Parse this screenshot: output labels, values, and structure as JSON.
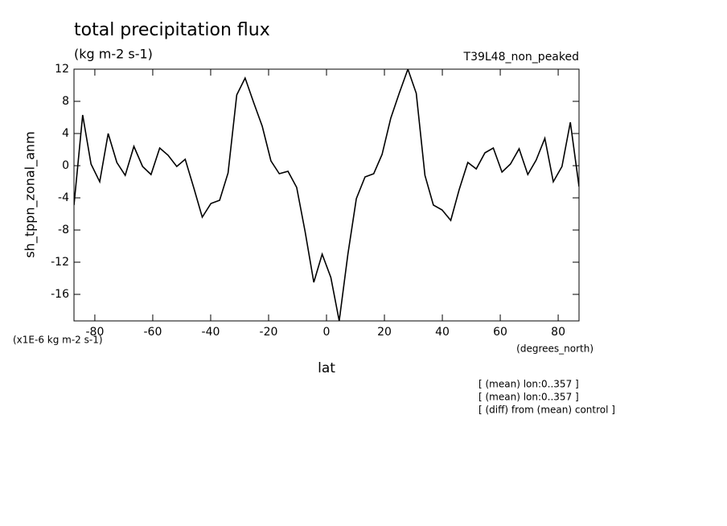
{
  "chart_data": {
    "type": "line",
    "title": "total precipitation flux",
    "subtitle": "(kg m-2 s-1)",
    "dataset_label": "T39L48_non_peaked",
    "y_label": "sh_tppn_zonal_anm",
    "y_units": "(x1E-6 kg m-2 s-1)",
    "x_label": "lat",
    "x_units": "(degrees_north)",
    "notes": [
      "[ (mean) lon:0..357 ]",
      "[ (mean) lon:0..357 ]",
      "[ (diff) from (mean) control ]"
    ],
    "x": [
      -87.2,
      -84.2,
      -81.3,
      -78.3,
      -75.4,
      -72.4,
      -69.5,
      -66.5,
      -63.5,
      -60.6,
      -57.6,
      -54.7,
      -51.7,
      -48.8,
      -45.8,
      -42.9,
      -39.9,
      -36.9,
      -34.0,
      -31.0,
      -28.1,
      -25.1,
      -22.2,
      -19.2,
      -16.3,
      -13.3,
      -10.3,
      -7.4,
      -4.4,
      -1.5,
      1.5,
      4.4,
      7.4,
      10.3,
      13.3,
      16.3,
      19.2,
      22.2,
      25.1,
      28.1,
      31.0,
      34.0,
      36.9,
      39.9,
      42.9,
      45.8,
      48.8,
      51.7,
      54.7,
      57.6,
      60.6,
      63.5,
      66.5,
      69.5,
      72.4,
      75.4,
      78.3,
      81.3,
      84.2,
      87.2
    ],
    "series": [
      {
        "name": "sh_tppn_zonal_anm",
        "color": "#000000",
        "values": [
          -4.9,
          6.3,
          0.2,
          -2.0,
          4.0,
          0.4,
          -1.2,
          2.4,
          -0.1,
          -1.1,
          2.2,
          1.3,
          -0.1,
          0.8,
          -2.8,
          -6.4,
          -4.7,
          -4.3,
          -0.9,
          8.8,
          10.9,
          7.8,
          4.9,
          0.6,
          -1.0,
          -0.7,
          -2.7,
          -8.2,
          -14.5,
          -11.0,
          -13.9,
          -19.3,
          -11.0,
          -4.1,
          -1.4,
          -1.0,
          1.4,
          5.9,
          9.0,
          12.0,
          9.0,
          -1.2,
          -4.9,
          -5.5,
          -6.8,
          -3.0,
          0.4,
          -0.4,
          1.6,
          2.2,
          -0.8,
          0.2,
          2.1,
          -1.1,
          0.7,
          3.4,
          -2.0,
          -0.1,
          5.4,
          -2.6
        ]
      }
    ],
    "xlim": [
      -87.2,
      87.2
    ],
    "ylim": [
      -19.3,
      12
    ],
    "xticks": [
      -80,
      -60,
      -40,
      -20,
      0,
      20,
      40,
      60,
      80
    ],
    "yticks": [
      -16,
      -12,
      -8,
      -4,
      0,
      4,
      8,
      12
    ]
  }
}
